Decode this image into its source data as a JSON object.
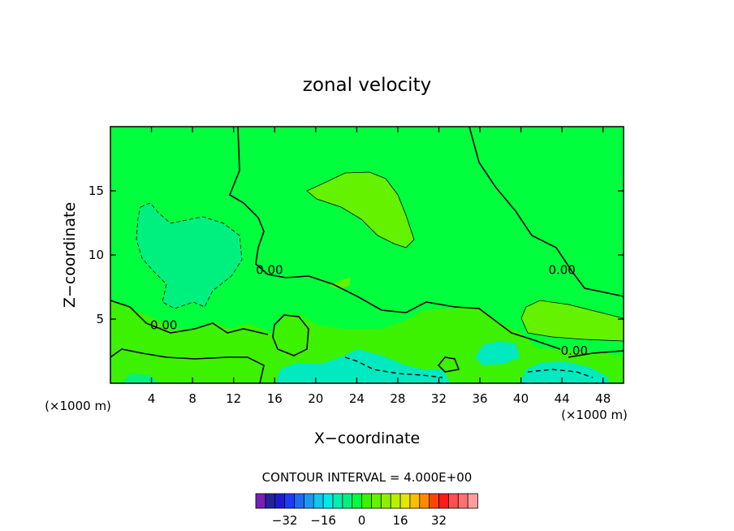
{
  "chart_data": {
    "type": "contour",
    "title": "zonal velocity",
    "xlabel": "X−coordinate",
    "ylabel": "Z−coordinate",
    "x_unit_left": "(×1000 m)",
    "x_unit_right": "(×1000 m)",
    "xlim": [
      0,
      50
    ],
    "ylim": [
      0,
      20
    ],
    "x_ticks": [
      4,
      8,
      12,
      16,
      20,
      24,
      28,
      32,
      36,
      40,
      44,
      48
    ],
    "y_ticks": [
      5,
      10,
      15
    ],
    "contour_interval_text": "CONTOUR INTERVAL = 4.000E+00",
    "contour_labels": [
      {
        "text": "0.00",
        "x": 5.2,
        "y": 4.2
      },
      {
        "text": "0.00",
        "x": 15.5,
        "y": 8.5
      },
      {
        "text": "0.00",
        "x": 44.0,
        "y": 8.5
      },
      {
        "text": "0.00",
        "x": 45.2,
        "y": 2.2
      }
    ],
    "regions": [
      {
        "level": 0,
        "shape": "background"
      },
      {
        "level": 4,
        "shape": "upper-center lobe",
        "x_range": [
          19.5,
          29.5
        ],
        "y_range": [
          11,
          16.5
        ]
      },
      {
        "level": -4,
        "shape": "upper-left patch",
        "x_range": [
          2.5,
          13
        ],
        "y_range": [
          5.5,
          14
        ]
      },
      {
        "level": 4,
        "shape": "lower-right patch",
        "x_range": [
          40.5,
          50
        ],
        "y_range": [
          3,
          6.3
        ]
      },
      {
        "level": 4,
        "shape": "near-surface band",
        "x_range": [
          0,
          15
        ],
        "y_range": [
          0,
          4
        ]
      },
      {
        "level": -8,
        "shape": "near-surface cell",
        "x_range": [
          16,
          33
        ],
        "y_range": [
          0,
          2
        ]
      },
      {
        "level": -8,
        "shape": "near-surface cell",
        "x_range": [
          35.5,
          40
        ],
        "y_range": [
          1.5,
          3.5
        ]
      },
      {
        "level": -8,
        "shape": "near-surface cell",
        "x_range": [
          40,
          49
        ],
        "y_range": [
          0,
          2
        ]
      }
    ],
    "colorbar": {
      "levels": [
        -40,
        -36,
        -32,
        -28,
        -24,
        -20,
        -16,
        -12,
        -8,
        -4,
        0,
        4,
        8,
        12,
        16,
        20,
        24,
        28,
        32,
        36
      ],
      "colors": [
        "#7a1fb8",
        "#23239a",
        "#1c1ccf",
        "#1a3df5",
        "#1f6af0",
        "#1f97f2",
        "#10c5f0",
        "#00e9e9",
        "#00f0b4",
        "#00f080",
        "#00ff3c",
        "#3cf200",
        "#64f200",
        "#8ef000",
        "#b9f000",
        "#e6e600",
        "#ffbe00",
        "#ff8a00",
        "#ff4500",
        "#ff1a1a",
        "#ff4f4f",
        "#ff7070",
        "#ff9c9c"
      ],
      "tick_labels": [
        "−32",
        "−16",
        "0",
        "16",
        "32"
      ],
      "tick_values": [
        -32,
        -16,
        0,
        16,
        32
      ]
    }
  }
}
